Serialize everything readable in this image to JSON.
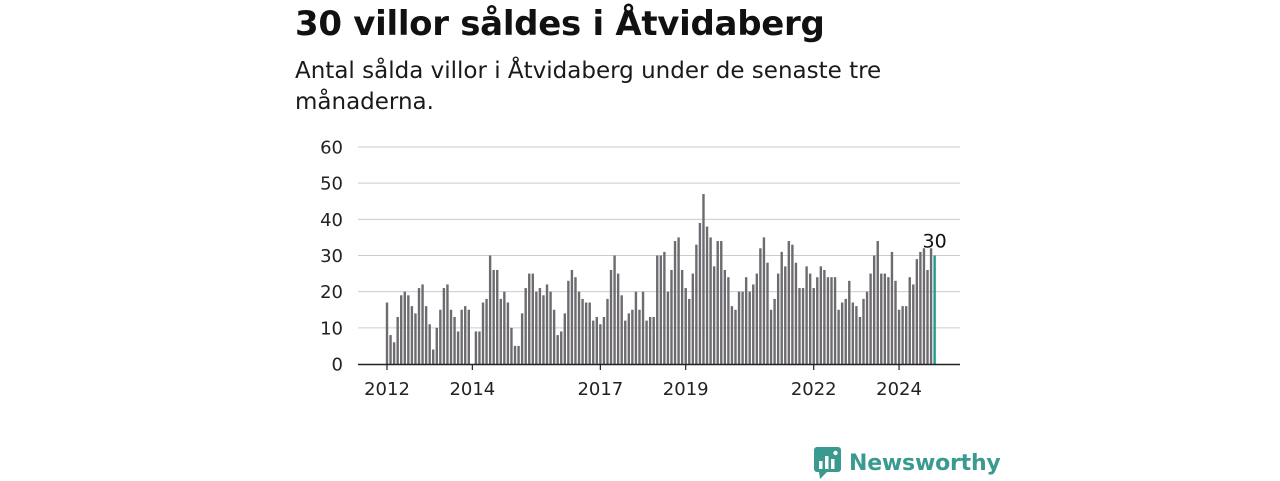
{
  "title": "30 villor såldes i Åtvidaberg",
  "subtitle": "Antal sålda villor i Åtvidaberg under de senaste tre månaderna.",
  "brand": {
    "name": "Newsworthy",
    "color": "#3a9a8f"
  },
  "colors": {
    "bar": "#6d6b70",
    "highlight": "#1f9a8f",
    "grid": "#cccccc",
    "axis": "#222222"
  },
  "chart_data": {
    "type": "bar",
    "ylim": [
      0,
      60
    ],
    "yticks": [
      0,
      10,
      20,
      30,
      40,
      50,
      60
    ],
    "xticks": [
      {
        "label": "2012",
        "index": 0
      },
      {
        "label": "2014",
        "index": 24
      },
      {
        "label": "2017",
        "index": 60
      },
      {
        "label": "2019",
        "index": 84
      },
      {
        "label": "2022",
        "index": 120
      },
      {
        "label": "2024",
        "index": 144
      }
    ],
    "grid": true,
    "highlight_label": "30",
    "values": [
      17,
      8,
      6,
      13,
      19,
      20,
      19,
      16,
      14,
      21,
      22,
      16,
      11,
      4,
      10,
      15,
      21,
      22,
      15,
      13,
      9,
      15,
      16,
      15,
      null,
      9,
      9,
      17,
      18,
      30,
      26,
      26,
      18,
      20,
      17,
      10,
      5,
      5,
      14,
      21,
      25,
      25,
      20,
      21,
      19,
      22,
      20,
      15,
      8,
      9,
      14,
      23,
      26,
      24,
      20,
      18,
      17,
      17,
      12,
      13,
      11,
      13,
      18,
      26,
      30,
      25,
      19,
      12,
      14,
      15,
      20,
      15,
      20,
      12,
      13,
      13,
      30,
      30,
      31,
      20,
      26,
      34,
      35,
      26,
      21,
      18,
      25,
      33,
      39,
      47,
      38,
      35,
      27,
      34,
      34,
      26,
      24,
      16,
      15,
      20,
      20,
      24,
      20,
      22,
      25,
      32,
      35,
      28,
      15,
      18,
      25,
      31,
      27,
      34,
      33,
      28,
      21,
      21,
      27,
      25,
      21,
      24,
      27,
      26,
      24,
      24,
      24,
      15,
      17,
      18,
      23,
      17,
      16,
      13,
      18,
      20,
      25,
      30,
      34,
      25,
      25,
      24,
      31,
      23,
      15,
      16,
      16,
      24,
      22,
      29,
      31,
      32,
      26,
      32,
      30
    ]
  }
}
